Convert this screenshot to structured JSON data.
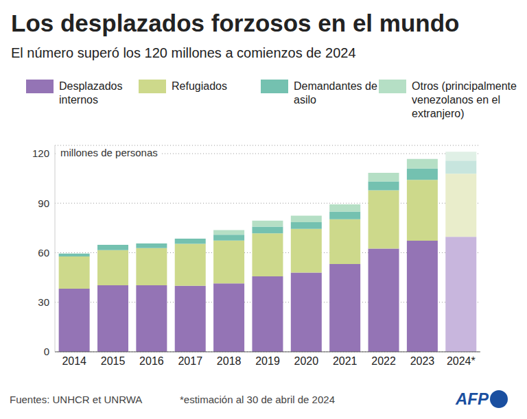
{
  "chart_data": {
    "type": "bar",
    "stacked": true,
    "grid": true,
    "title": "Los desplazados forzosos en el mundo",
    "subtitle": "El número superó los 120 millones a comienzos de 2024",
    "ylabel": "millones de personas",
    "categories": [
      "2014",
      "2015",
      "2016",
      "2017",
      "2018",
      "2019",
      "2020",
      "2021",
      "2022",
      "2023",
      "2024*"
    ],
    "ylim": [
      0,
      125
    ],
    "yticks": [
      0,
      30,
      60,
      90,
      120
    ],
    "series": [
      {
        "name": "Desplazados internos",
        "color": "#9474b5",
        "colors": [
          "#9474b5",
          "#9474b5",
          "#9474b5",
          "#9474b5",
          "#9474b5",
          "#9474b5",
          "#9474b5",
          "#9474b5",
          "#9474b5",
          "#9474b5",
          "#c8b6dd"
        ],
        "values": [
          38.2,
          40.3,
          40.3,
          40.0,
          41.4,
          45.7,
          48.0,
          53.2,
          62.5,
          67.3,
          69.7
        ]
      },
      {
        "name": "Refugiados",
        "color": "#cdd98b",
        "colors": [
          "#cdd98b",
          "#cdd98b",
          "#cdd98b",
          "#cdd98b",
          "#cdd98b",
          "#cdd98b",
          "#cdd98b",
          "#cdd98b",
          "#cdd98b",
          "#cdd98b",
          "#e9edcb"
        ],
        "values": [
          19.5,
          21.3,
          22.5,
          25.4,
          26.0,
          26.0,
          26.4,
          27.1,
          35.3,
          36.8,
          38.2
        ]
      },
      {
        "name": "Demandantes de asilo",
        "color": "#74c1b0",
        "colors": [
          "#74c1b0",
          "#74c1b0",
          "#74c1b0",
          "#74c1b0",
          "#74c1b0",
          "#74c1b0",
          "#74c1b0",
          "#74c1b0",
          "#74c1b0",
          "#74c1b0",
          "#c7e5de"
        ],
        "values": [
          1.8,
          3.2,
          2.8,
          3.1,
          3.5,
          4.1,
          4.1,
          4.6,
          5.4,
          6.9,
          7.9
        ]
      },
      {
        "name": "Otros (principalmente venezolanos en el extranjero)",
        "color": "#b5dfc5",
        "colors": [
          "#b5dfc5",
          "#b5dfc5",
          "#b5dfc5",
          "#b5dfc5",
          "#b5dfc5",
          "#b5dfc5",
          "#b5dfc5",
          "#b5dfc5",
          "#b5dfc5",
          "#b5dfc5",
          "#e0f0e6"
        ],
        "values": [
          0,
          0,
          0,
          0,
          2.8,
          3.6,
          3.9,
          4.4,
          5.2,
          5.8,
          5.4
        ]
      }
    ],
    "sources": "Fuentes: UNHCR et UNRWA",
    "footnote": "*estimación al 30 de abril de 2024",
    "credit": "AFP"
  }
}
